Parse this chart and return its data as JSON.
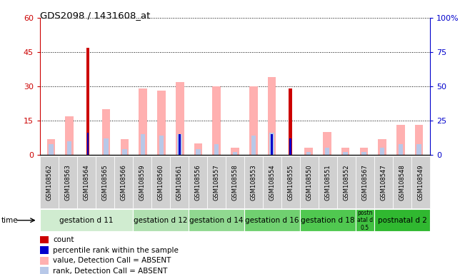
{
  "title": "GDS2098 / 1431608_at",
  "samples": [
    "GSM108562",
    "GSM108563",
    "GSM108564",
    "GSM108565",
    "GSM108566",
    "GSM108559",
    "GSM108560",
    "GSM108561",
    "GSM108556",
    "GSM108557",
    "GSM108558",
    "GSM108553",
    "GSM108554",
    "GSM108555",
    "GSM108550",
    "GSM108551",
    "GSM108552",
    "GSM108567",
    "GSM108547",
    "GSM108548",
    "GSM108549"
  ],
  "count_values": [
    0,
    0,
    47,
    0,
    0,
    0,
    0,
    0,
    0,
    0,
    0,
    0,
    0,
    29,
    0,
    0,
    0,
    0,
    0,
    0,
    0
  ],
  "percentile_values": [
    0,
    0,
    16,
    0,
    0,
    0,
    0,
    15,
    0,
    0,
    0,
    0,
    15,
    12,
    0,
    0,
    0,
    0,
    0,
    0,
    0
  ],
  "value_absent": [
    7,
    17,
    0,
    20,
    7,
    29,
    28,
    32,
    5,
    30,
    3,
    30,
    34,
    0,
    3,
    10,
    3,
    3,
    7,
    13,
    13
  ],
  "rank_absent": [
    8,
    10,
    0,
    12,
    4,
    15,
    14,
    15,
    4,
    8,
    2,
    14,
    16,
    0,
    2,
    5,
    2,
    2,
    5,
    8,
    8
  ],
  "groups": [
    {
      "label": "gestation d 11",
      "start": 0,
      "end": 5
    },
    {
      "label": "gestation d 12",
      "start": 5,
      "end": 8
    },
    {
      "label": "gestation d 14",
      "start": 8,
      "end": 11
    },
    {
      "label": "gestation d 16",
      "start": 11,
      "end": 14
    },
    {
      "label": "gestation d 18",
      "start": 14,
      "end": 17
    },
    {
      "label": "postn\natal d\n0.5",
      "start": 17,
      "end": 18
    },
    {
      "label": "postnatal d 2",
      "start": 18,
      "end": 21
    }
  ],
  "group_colors": [
    "#d0ecd0",
    "#b0e0b0",
    "#90d890",
    "#70d070",
    "#50c850",
    "#40c040",
    "#30b830"
  ],
  "ylim_left": [
    0,
    60
  ],
  "ylim_right": [
    0,
    100
  ],
  "yticks_left": [
    0,
    15,
    30,
    45,
    60
  ],
  "yticks_right": [
    0,
    25,
    50,
    75,
    100
  ],
  "ytick_labels_left": [
    "0",
    "15",
    "30",
    "45",
    "60"
  ],
  "ytick_labels_right": [
    "0",
    "25",
    "50",
    "75",
    "100%"
  ],
  "color_count": "#cc0000",
  "color_percentile": "#0000cc",
  "color_value_absent": "#ffb0b0",
  "color_rank_absent": "#b8c8e8",
  "bg_plot": "#ffffff",
  "bg_xtick": "#d0d0d0",
  "legend_items": [
    {
      "color": "#cc0000",
      "label": "count"
    },
    {
      "color": "#0000cc",
      "label": "percentile rank within the sample"
    },
    {
      "color": "#ffb0b0",
      "label": "value, Detection Call = ABSENT"
    },
    {
      "color": "#b8c8e8",
      "label": "rank, Detection Call = ABSENT"
    }
  ]
}
